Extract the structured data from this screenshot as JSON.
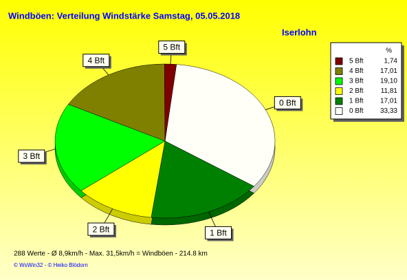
{
  "chart_data": {
    "type": "pie",
    "title": "Windböen: Verteilung Windstärke  Samstag, 05.05.2018",
    "subtitle": "Iserlohn",
    "legend_title": "%",
    "categories": [
      "5 Bft",
      "4 Bft",
      "3 Bft",
      "2 Bft",
      "1 Bft",
      "0 Bft"
    ],
    "values": [
      1.74,
      17.01,
      19.1,
      11.81,
      17.01,
      33.33
    ],
    "value_labels": [
      "1,74",
      "17,01",
      "19,10",
      "11,81",
      "17,01",
      "33,33"
    ],
    "colors": [
      "#800000",
      "#808000",
      "#00ff00",
      "#ffff00",
      "#008000",
      "#fffff8"
    ],
    "footer": "288 Werte   -   Ø 8,9km/h  -  Max. 31,5km/h = Windböen   -   214.8 km",
    "credits": "© WsWin32  -  © Heiko Blödorn"
  }
}
